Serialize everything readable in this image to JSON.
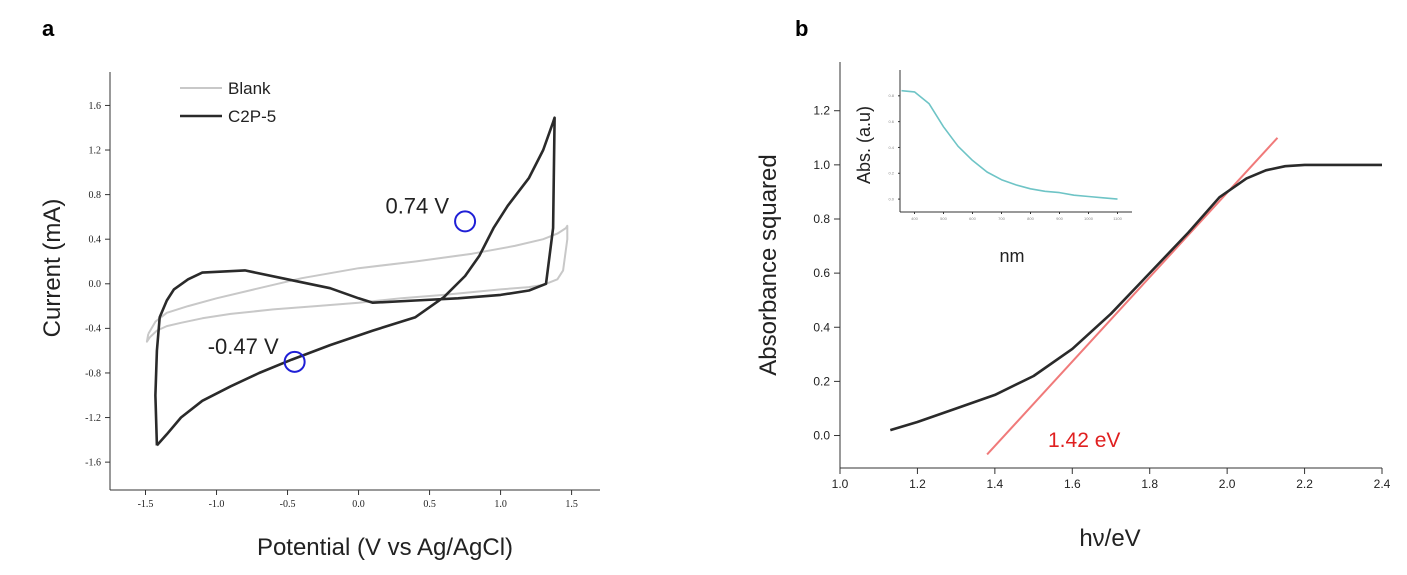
{
  "chart_data": [
    {
      "panel_label": "a",
      "type": "line",
      "xlabel": "Potential (V vs Ag/AgCl)",
      "ylabel": "Current (mA)",
      "xlim": [
        -1.75,
        1.7
      ],
      "ylim": [
        -1.85,
        1.9
      ],
      "xticks": [
        -1.5,
        -1.0,
        -0.5,
        0.0,
        0.5,
        1.0,
        1.5
      ],
      "xtick_labels": [
        "-1.5",
        "-1.0",
        "-0.5",
        "0.0",
        "0.5",
        "1.0",
        "1.5"
      ],
      "yticks": [
        -1.6,
        -1.2,
        -0.8,
        -0.4,
        0.0,
        0.4,
        0.8,
        1.2,
        1.6
      ],
      "ytick_labels": [
        "-1.6",
        "-1.2",
        "-0.8",
        "-0.4",
        "0.0",
        "0.4",
        "0.8",
        "1.2",
        "1.6"
      ],
      "grid": false,
      "legend_position": "top-left",
      "series": [
        {
          "name": "Blank",
          "color": "#c8c8c8",
          "x": [
            -1.48,
            -1.43,
            -1.35,
            -1.2,
            -1.0,
            -0.7,
            -0.4,
            0.0,
            0.4,
            0.8,
            1.1,
            1.3,
            1.4,
            1.46,
            1.47,
            1.47,
            1.44,
            1.4,
            1.3,
            1.2,
            1.0,
            0.6,
            0.3,
            0.0,
            -0.3,
            -0.6,
            -0.9,
            -1.1,
            -1.25,
            -1.35,
            -1.42,
            -1.47,
            -1.49,
            -1.48
          ],
          "y": [
            -0.45,
            -0.34,
            -0.26,
            -0.2,
            -0.13,
            -0.04,
            0.05,
            0.14,
            0.2,
            0.27,
            0.34,
            0.4,
            0.45,
            0.5,
            0.52,
            0.4,
            0.12,
            0.04,
            -0.01,
            -0.03,
            -0.05,
            -0.1,
            -0.13,
            -0.17,
            -0.2,
            -0.23,
            -0.27,
            -0.31,
            -0.35,
            -0.38,
            -0.42,
            -0.48,
            -0.52,
            -0.45
          ]
        },
        {
          "name": "C2P-5",
          "color": "#2a2a2a",
          "x": [
            -1.42,
            -1.35,
            -1.25,
            -1.1,
            -0.9,
            -0.7,
            -0.47,
            -0.2,
            0.1,
            0.4,
            0.6,
            0.75,
            0.85,
            0.95,
            1.05,
            1.2,
            1.3,
            1.37,
            1.38,
            1.37,
            1.32,
            1.2,
            1.0,
            0.7,
            0.4,
            0.1,
            0.0,
            -0.2,
            -0.5,
            -0.8,
            -1.1,
            -1.2,
            -1.3,
            -1.35,
            -1.4,
            -1.42,
            -1.43,
            -1.42
          ],
          "y": [
            -1.45,
            -1.35,
            -1.2,
            -1.05,
            -0.92,
            -0.8,
            -0.68,
            -0.55,
            -0.42,
            -0.3,
            -0.12,
            0.07,
            0.25,
            0.5,
            0.7,
            0.95,
            1.2,
            1.45,
            1.49,
            0.5,
            0.0,
            -0.06,
            -0.1,
            -0.13,
            -0.15,
            -0.17,
            -0.13,
            -0.04,
            0.04,
            0.12,
            0.1,
            0.04,
            -0.05,
            -0.15,
            -0.3,
            -0.6,
            -1.0,
            -1.45
          ]
        }
      ],
      "markers": [
        {
          "x": 0.75,
          "y": 0.56,
          "label": "0.74 V",
          "color": "#1f1fd6"
        },
        {
          "x": -0.45,
          "y": -0.7,
          "label": "-0.47 V",
          "color": "#1f1fd6"
        }
      ]
    },
    {
      "panel_label": "b",
      "type": "line",
      "xlabel": "hν/eV",
      "ylabel": "Absorbance squared",
      "xlim": [
        1.0,
        2.4
      ],
      "ylim": [
        -0.12,
        1.38
      ],
      "xticks": [
        1.0,
        1.2,
        1.4,
        1.6,
        1.8,
        2.0,
        2.2,
        2.4
      ],
      "xtick_labels": [
        "1.0",
        "1.2",
        "1.4",
        "1.6",
        "1.8",
        "2.0",
        "2.2",
        "2.4"
      ],
      "yticks": [
        0.0,
        0.2,
        0.4,
        0.6,
        0.8,
        1.0,
        1.2
      ],
      "ytick_labels": [
        "0.0",
        "0.2",
        "0.4",
        "0.6",
        "0.8",
        "1.0",
        "1.2"
      ],
      "grid": false,
      "series": [
        {
          "color": "#2a2a2a",
          "x": [
            1.13,
            1.2,
            1.3,
            1.4,
            1.5,
            1.6,
            1.7,
            1.8,
            1.9,
            1.98,
            2.05,
            2.1,
            2.15,
            2.2,
            2.3,
            2.4
          ],
          "y": [
            0.02,
            0.05,
            0.1,
            0.15,
            0.22,
            0.32,
            0.45,
            0.6,
            0.75,
            0.88,
            0.95,
            0.98,
            0.995,
            1.0,
            1.0,
            1.0
          ]
        }
      ],
      "fit_line": {
        "color": "#f07a7a",
        "x": [
          1.38,
          2.13
        ],
        "y": [
          -0.07,
          1.1
        ],
        "label": "1.42 eV",
        "label_color": "#e02020"
      },
      "inset": {
        "type": "line",
        "xlabel": "nm",
        "ylabel": "Abs. (a.u)",
        "xlim": [
          350,
          1150
        ],
        "ylim": [
          -0.1,
          1.0
        ],
        "xticks": [
          400,
          500,
          600,
          700,
          800,
          900,
          1000,
          1100
        ],
        "xtick_labels": [
          "400",
          "500",
          "600",
          "700",
          "800",
          "900",
          "1000",
          "1100"
        ],
        "yticks": [
          0.0,
          0.2,
          0.4,
          0.6,
          0.8
        ],
        "ytick_labels": [
          "0.0",
          "0.2",
          "0.4",
          "0.6",
          "0.8"
        ],
        "series": [
          {
            "color": "#6ec4c6",
            "x": [
              355,
              400,
              450,
              500,
              550,
              600,
              650,
              700,
              750,
              800,
              850,
              900,
              950,
              1000,
              1050,
              1100
            ],
            "y": [
              0.84,
              0.83,
              0.74,
              0.56,
              0.41,
              0.3,
              0.21,
              0.15,
              0.11,
              0.08,
              0.06,
              0.05,
              0.03,
              0.02,
              0.01,
              0.0
            ]
          }
        ]
      }
    }
  ]
}
